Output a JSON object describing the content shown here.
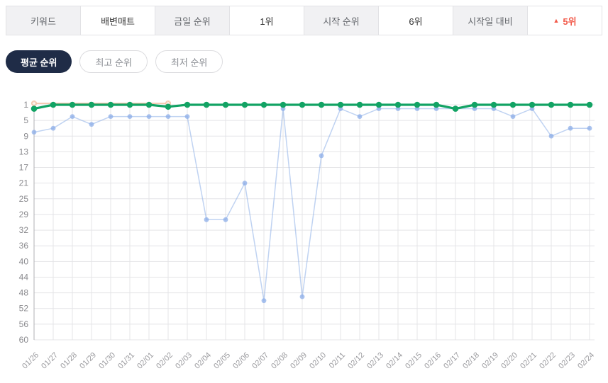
{
  "header": {
    "keyword_label": "키워드",
    "keyword_value": "배변매트",
    "today_label": "금일 순위",
    "today_value": "1위",
    "start_label": "시작 순위",
    "start_value": "6위",
    "delta_label": "시작일 대비",
    "delta_arrow": "▲",
    "delta_value": "5위"
  },
  "tabs": {
    "average": "평균 순위",
    "best": "최고 순위",
    "worst": "최저 순위"
  },
  "colors": {
    "accent_navy": "#1f2c47",
    "accent_red": "#f25a4a",
    "green_series": "#12a364",
    "blue_series": "#8caee8",
    "peach_series": "#f5c3a8",
    "grid": "#e4e4e7",
    "axis_line": "#b0b0b4",
    "tick_text": "#8a8a8e"
  },
  "chart_data": {
    "type": "line",
    "y_inverted": true,
    "grid": true,
    "legend": "none",
    "title": "",
    "xlabel": "",
    "ylabel": "",
    "y_ticks": [
      1,
      5,
      9,
      13,
      17,
      21,
      25,
      29,
      32,
      36,
      40,
      44,
      48,
      52,
      56,
      60
    ],
    "x": [
      "01/26",
      "01/27",
      "01/28",
      "01/29",
      "01/30",
      "01/31",
      "02/01",
      "02/02",
      "02/03",
      "02/04",
      "02/05",
      "02/06",
      "02/07",
      "02/08",
      "02/09",
      "02/10",
      "02/11",
      "02/12",
      "02/13",
      "02/14",
      "02/15",
      "02/16",
      "02/17",
      "02/18",
      "02/19",
      "02/20",
      "02/21",
      "02/22",
      "02/23",
      "02/24"
    ],
    "series": [
      {
        "name": "start-baseline-rank",
        "color": "#f5c3a8",
        "width": 1.8,
        "marker_r": 4,
        "marker_indices": [
          0,
          7
        ],
        "star_markers": true,
        "values": [
          1,
          1,
          1,
          1,
          1,
          1,
          1,
          1,
          null,
          null,
          null,
          null,
          null,
          null,
          null,
          null,
          null,
          null,
          null,
          null,
          null,
          null,
          null,
          null,
          null,
          null,
          null,
          null,
          null,
          null
        ]
      },
      {
        "name": "competitor-rank",
        "color": "#8caee8",
        "line_opacity": 0.55,
        "marker_opacity": 0.75,
        "width": 1.5,
        "marker_r": 3.4,
        "values": [
          8,
          7,
          4,
          6,
          4,
          4,
          4,
          4,
          4,
          30,
          30,
          21,
          50,
          2,
          49,
          14,
          2,
          4,
          2,
          2,
          2,
          2,
          2,
          2,
          2,
          4,
          2,
          9,
          7,
          7
        ]
      },
      {
        "name": "average-rank",
        "color": "#12a364",
        "width": 3.2,
        "marker_r": 4.3,
        "values": [
          2,
          1,
          1,
          1,
          1,
          1,
          1,
          1.5,
          1,
          1,
          1,
          1,
          1,
          1,
          1,
          1,
          1,
          1,
          1,
          1,
          1,
          1,
          2,
          1,
          1,
          1,
          1,
          1,
          1,
          1
        ]
      }
    ]
  }
}
